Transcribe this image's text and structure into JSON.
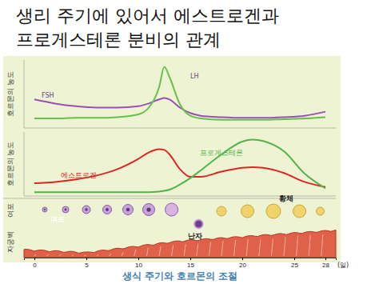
{
  "title": [
    "생리 주기에 있어서 에스트로겐과",
    "프로게스테론 분비의 관계"
  ],
  "caption": "생식 주기와 호르몬의 조절",
  "chart_data": [
    {
      "type": "line",
      "y_label": "호르몬의 농도",
      "tick_labels": false,
      "x": [
        0,
        2,
        4,
        6,
        8,
        10,
        11,
        12,
        12.5,
        13,
        14,
        15,
        16,
        18,
        20,
        21,
        22,
        24,
        26,
        28
      ],
      "xlim": [
        -1,
        29
      ],
      "ylim": [
        0,
        100
      ],
      "series": [
        {
          "name": "FSH",
          "color": "#9b4fb8",
          "values": [
            42,
            36,
            32,
            30,
            30,
            32,
            36,
            42,
            44,
            42,
            30,
            22,
            18,
            16,
            15,
            15,
            15,
            16,
            18,
            24
          ]
        },
        {
          "name": "LH",
          "color": "#6abf4b",
          "values": [
            14,
            14,
            15,
            15,
            16,
            20,
            30,
            60,
            90,
            75,
            35,
            18,
            14,
            12,
            12,
            12,
            12,
            13,
            14,
            16
          ]
        }
      ]
    },
    {
      "type": "line",
      "y_label": "호르몬의 농도",
      "tick_labels": false,
      "x": [
        0,
        2,
        4,
        6,
        8,
        10,
        11,
        12,
        12.5,
        13,
        14,
        15,
        16,
        18,
        20,
        21,
        22,
        24,
        26,
        28
      ],
      "xlim": [
        -1,
        29
      ],
      "ylim": [
        0,
        100
      ],
      "series": [
        {
          "name": "에스트로겐",
          "color": "#e02424",
          "values": [
            20,
            22,
            26,
            32,
            42,
            58,
            68,
            73,
            72,
            65,
            42,
            30,
            30,
            38,
            44,
            45,
            44,
            36,
            22,
            14
          ]
        },
        {
          "name": "프로게스테론",
          "color": "#4fb548",
          "values": [
            6,
            6,
            6,
            6,
            6,
            6,
            6,
            7,
            8,
            10,
            18,
            28,
            40,
            65,
            85,
            88,
            86,
            70,
            35,
            12
          ]
        }
      ]
    },
    {
      "type": "illustration",
      "tick_labels": "x",
      "row_labels": [
        "여포",
        "자궁벽"
      ],
      "labels": [
        "여포",
        "난자",
        "황체"
      ],
      "xlim": [
        -1,
        29
      ],
      "xticks": [
        0,
        5,
        10,
        15,
        20,
        25,
        28
      ],
      "x_label": "(일)"
    }
  ]
}
